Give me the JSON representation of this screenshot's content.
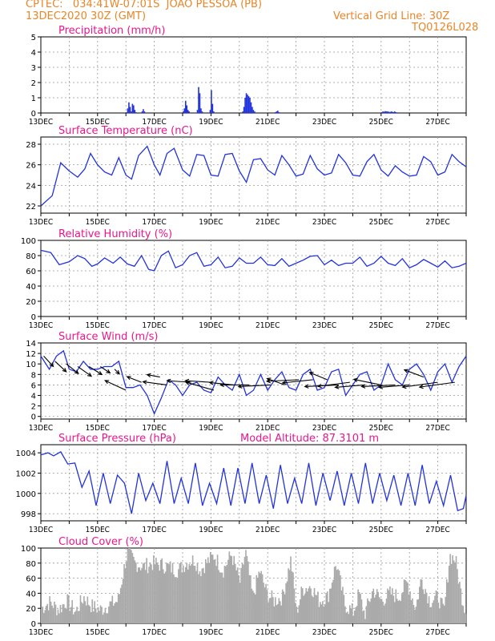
{
  "header": {
    "line1": "CPTEC:   034:41W-07:01S  JOAO PESSOA (PB)",
    "line2": "13DEC2020 30Z (GMT)",
    "grid_line": "Vertical Grid Line: 30Z",
    "code": "TQ0126L028"
  },
  "colors": {
    "series": "#2233dd",
    "title": "#e8178c",
    "header": "#e8862a",
    "cloud": "#aaaaaa",
    "arrow": "#000000"
  },
  "chart_data": [
    {
      "id": "precip",
      "type": "bar",
      "title": "Precipitation (mm/h)",
      "ylim": [
        0,
        5
      ],
      "yticks": [
        0,
        1,
        2,
        3,
        4,
        5
      ],
      "xticks": [
        "13DEC",
        "15DEC",
        "17DEC",
        "19DEC",
        "21DEC",
        "23DEC",
        "25DEC",
        "27DEC"
      ],
      "x_days": [
        0,
        15
      ],
      "step_hours": 1,
      "events": [
        {
          "start_day": 3.0,
          "values": [
            0.05,
            0.3,
            0.7,
            0.4,
            0.1,
            0.6,
            0.5,
            0.2,
            0.05
          ]
        },
        {
          "start_day": 3.55,
          "values": [
            0.1,
            0.25,
            0.1
          ]
        },
        {
          "start_day": 5.0,
          "values": [
            0.1,
            0.3,
            0.8,
            0.5,
            0.2,
            0.1
          ]
        },
        {
          "start_day": 5.5,
          "values": [
            0.2,
            1.7,
            1.3,
            0.3,
            0.1
          ]
        },
        {
          "start_day": 5.95,
          "values": [
            0.2,
            1.5,
            0.6,
            0.1
          ]
        },
        {
          "start_day": 7.1,
          "values": [
            0.1,
            0.4,
            1.0,
            1.3,
            1.2,
            1.1,
            1.0,
            0.7,
            0.4,
            0.2,
            0.1
          ]
        },
        {
          "start_day": 8.25,
          "values": [
            0.05,
            0.1,
            0.15,
            0.05
          ]
        },
        {
          "start_day": 12.0,
          "values": [
            0.05,
            0.1,
            0.08,
            0.12,
            0.1,
            0.1,
            0.08,
            0.06,
            0.1,
            0.08,
            0.06,
            0.1,
            0.05,
            0.04
          ]
        }
      ]
    },
    {
      "id": "temp",
      "type": "line",
      "title": "Surface Temperature (nC)",
      "ylim": [
        21.3,
        28.7
      ],
      "yticks": [
        22,
        24,
        26,
        28
      ],
      "xticks": [
        "13DEC",
        "15DEC",
        "17DEC",
        "19DEC",
        "21DEC",
        "23DEC",
        "25DEC",
        "27DEC"
      ],
      "x_days": [
        0,
        15
      ],
      "x": [
        0,
        0.4,
        0.7,
        1.0,
        1.3,
        1.55,
        1.75,
        2.0,
        2.25,
        2.5,
        2.75,
        3.0,
        3.2,
        3.45,
        3.75,
        4.0,
        4.2,
        4.45,
        4.7,
        5.0,
        5.25,
        5.5,
        5.75,
        6.0,
        6.25,
        6.5,
        6.75,
        7.0,
        7.25,
        7.5,
        7.75,
        8.0,
        8.25,
        8.5,
        8.75,
        9.0,
        9.25,
        9.5,
        9.75,
        10.0,
        10.25,
        10.5,
        10.75,
        11.0,
        11.25,
        11.5,
        11.75,
        12.0,
        12.25,
        12.5,
        12.75,
        13.0,
        13.25,
        13.5,
        13.75,
        14.0,
        14.25,
        14.5,
        14.75,
        15.0
      ],
      "values": [
        22.0,
        23.0,
        26.2,
        25.4,
        24.8,
        25.6,
        27.1,
        26.0,
        25.3,
        25.0,
        26.7,
        25.0,
        24.6,
        26.9,
        27.8,
        26.0,
        25.0,
        27.1,
        27.6,
        25.5,
        24.9,
        27.0,
        26.9,
        25.0,
        24.9,
        27.0,
        27.1,
        25.4,
        24.3,
        26.5,
        26.6,
        25.5,
        25.0,
        26.9,
        26.0,
        24.9,
        25.1,
        26.9,
        25.6,
        25.0,
        25.2,
        27.0,
        26.2,
        25.0,
        24.9,
        26.3,
        27.0,
        25.5,
        24.9,
        25.9,
        25.3,
        24.9,
        25.0,
        26.8,
        26.3,
        25.0,
        25.3,
        27.0,
        26.3,
        25.8
      ]
    },
    {
      "id": "rh",
      "type": "line",
      "title": "Relative Humidity (%)",
      "ylim": [
        0,
        100
      ],
      "yticks": [
        0,
        20,
        40,
        60,
        80,
        100
      ],
      "xticks": [
        "13DEC",
        "15DEC",
        "17DEC",
        "19DEC",
        "21DEC",
        "23DEC",
        "25DEC",
        "27DEC"
      ],
      "x_days": [
        0,
        15
      ],
      "x": [
        0,
        0.35,
        0.65,
        1.0,
        1.3,
        1.55,
        1.8,
        2.0,
        2.25,
        2.55,
        2.8,
        3.05,
        3.3,
        3.55,
        3.8,
        4.0,
        4.25,
        4.5,
        4.75,
        5.0,
        5.25,
        5.5,
        5.75,
        6.0,
        6.25,
        6.5,
        6.75,
        7.0,
        7.25,
        7.5,
        7.75,
        8.0,
        8.25,
        8.5,
        8.75,
        9.0,
        9.25,
        9.5,
        9.75,
        10.0,
        10.25,
        10.5,
        10.75,
        11.0,
        11.25,
        11.5,
        11.75,
        12.0,
        12.25,
        12.5,
        12.75,
        13.0,
        13.25,
        13.5,
        13.75,
        14.0,
        14.25,
        14.5,
        14.75,
        15.0
      ],
      "values": [
        87,
        84,
        68,
        72,
        80,
        76,
        66,
        69,
        77,
        70,
        78,
        69,
        66,
        80,
        62,
        60,
        80,
        86,
        64,
        68,
        80,
        84,
        66,
        68,
        78,
        64,
        66,
        77,
        70,
        70,
        78,
        68,
        67,
        76,
        66,
        70,
        74,
        79,
        80,
        68,
        74,
        67,
        70,
        70,
        78,
        66,
        70,
        79,
        70,
        67,
        76,
        64,
        68,
        75,
        70,
        65,
        73,
        64,
        66,
        70
      ]
    },
    {
      "id": "wind",
      "type": "line",
      "title": "Surface Wind (m/s)",
      "ylim": [
        -0.5,
        14
      ],
      "yticks": [
        0,
        2,
        4,
        6,
        8,
        10,
        12,
        14
      ],
      "xticks": [
        "13DEC",
        "15DEC",
        "17DEC",
        "19DEC",
        "21DEC",
        "23DEC",
        "25DEC",
        "27DEC"
      ],
      "x_days": [
        0,
        15
      ],
      "x": [
        0,
        0.3,
        0.55,
        0.8,
        1.0,
        1.25,
        1.5,
        1.75,
        2.0,
        2.25,
        2.5,
        2.75,
        3.0,
        3.25,
        3.5,
        3.75,
        4.0,
        4.25,
        4.5,
        4.75,
        5.0,
        5.25,
        5.5,
        5.75,
        6.0,
        6.25,
        6.5,
        6.75,
        7.0,
        7.25,
        7.5,
        7.75,
        8.0,
        8.25,
        8.5,
        8.75,
        9.0,
        9.25,
        9.5,
        9.75,
        10.0,
        10.25,
        10.5,
        10.75,
        11.0,
        11.25,
        11.5,
        11.75,
        12.0,
        12.25,
        12.5,
        12.75,
        13.0,
        13.25,
        13.5,
        13.75,
        14.0,
        14.25,
        14.5,
        14.75,
        15.0
      ],
      "values": [
        11.5,
        9.0,
        11.5,
        12.5,
        9.0,
        8.5,
        10.5,
        9.0,
        9.0,
        9.5,
        9.5,
        10.5,
        5.5,
        5.5,
        6.0,
        4.0,
        0.5,
        3.5,
        7.0,
        6.0,
        4.0,
        6.0,
        6.5,
        5.0,
        4.5,
        7.5,
        6.0,
        5.0,
        8.0,
        4.0,
        5.0,
        8.0,
        5.0,
        7.0,
        8.5,
        5.5,
        5.0,
        8.0,
        9.0,
        5.0,
        5.5,
        8.5,
        9.0,
        4.0,
        6.0,
        8.0,
        8.5,
        5.0,
        6.0,
        10.0,
        7.0,
        6.0,
        9.0,
        10.0,
        8.0,
        5.0,
        8.5,
        10.0,
        6.5,
        9.5,
        11.5
      ],
      "arrows": [
        {
          "x": 0.1,
          "speed": 11.5,
          "dx": 12,
          "dy": 13
        },
        {
          "x": 0.5,
          "speed": 10.5,
          "dx": 14,
          "dy": 13
        },
        {
          "x": 0.9,
          "speed": 10.0,
          "dx": 15,
          "dy": 12
        },
        {
          "x": 1.3,
          "speed": 9.5,
          "dx": 17,
          "dy": 12
        },
        {
          "x": 1.7,
          "speed": 9.5,
          "dx": 16,
          "dy": 10
        },
        {
          "x": 2.1,
          "speed": 9.5,
          "dx": 12,
          "dy": 8
        },
        {
          "x": 2.6,
          "speed": 9.0,
          "dx": 6,
          "dy": 6
        },
        {
          "x": 3.0,
          "speed": 5.0,
          "dx": -26,
          "dy": -12
        },
        {
          "x": 3.55,
          "speed": 6.5,
          "dx": -18,
          "dy": -7
        },
        {
          "x": 4.2,
          "speed": 7.5,
          "dx": -16,
          "dy": -3
        },
        {
          "x": 4.45,
          "speed": 6.0,
          "dx": -30,
          "dy": -4
        },
        {
          "x": 5.3,
          "speed": 6.5,
          "dx": -30,
          "dy": -2
        },
        {
          "x": 6.0,
          "speed": 6.5,
          "dx": -32,
          "dy": -2
        },
        {
          "x": 6.1,
          "speed": 5.0,
          "dx": -35,
          "dy": -10
        },
        {
          "x": 6.8,
          "speed": 6.0,
          "dx": -30,
          "dy": -3
        },
        {
          "x": 7.35,
          "speed": 6.0,
          "dx": -36,
          "dy": 0
        },
        {
          "x": 8.1,
          "speed": 6.0,
          "dx": -40,
          "dy": 2
        },
        {
          "x": 8.6,
          "speed": 6.0,
          "dx": -22,
          "dy": -8
        },
        {
          "x": 9.1,
          "speed": 7.0,
          "dx": -40,
          "dy": 2
        },
        {
          "x": 9.6,
          "speed": 7.0,
          "dx": -38,
          "dy": 4
        },
        {
          "x": 10.1,
          "speed": 7.0,
          "dx": -22,
          "dy": -9
        },
        {
          "x": 10.5,
          "speed": 6.0,
          "dx": -42,
          "dy": 2
        },
        {
          "x": 10.9,
          "speed": 6.5,
          "dx": -40,
          "dy": 5
        },
        {
          "x": 11.4,
          "speed": 6.0,
          "dx": -36,
          "dy": 3
        },
        {
          "x": 12.0,
          "speed": 6.0,
          "dx": -34,
          "dy": -7
        },
        {
          "x": 12.5,
          "speed": 6.0,
          "dx": -42,
          "dy": 2
        },
        {
          "x": 13.0,
          "speed": 6.0,
          "dx": -38,
          "dy": 3
        },
        {
          "x": 13.5,
          "speed": 7.5,
          "dx": -24,
          "dy": -9
        },
        {
          "x": 14.0,
          "speed": 6.5,
          "dx": -44,
          "dy": 6
        },
        {
          "x": 14.6,
          "speed": 6.5,
          "dx": -44,
          "dy": 6
        }
      ]
    },
    {
      "id": "press",
      "type": "line",
      "title": "Surface Pressure (hPa)",
      "extra_label": "Model Altitude: 87.3101 m",
      "ylim": [
        997.3,
        1004.8
      ],
      "yticks": [
        998,
        1000,
        1002,
        1004
      ],
      "xticks": [
        "13DEC",
        "15DEC",
        "17DEC",
        "19DEC",
        "21DEC",
        "23DEC",
        "25DEC",
        "27DEC"
      ],
      "x_days": [
        0,
        15
      ],
      "x": [
        0,
        0.25,
        0.45,
        0.7,
        0.95,
        1.2,
        1.45,
        1.7,
        1.95,
        2.2,
        2.45,
        2.7,
        2.95,
        3.2,
        3.45,
        3.7,
        3.95,
        4.2,
        4.45,
        4.7,
        4.95,
        5.2,
        5.45,
        5.7,
        5.95,
        6.2,
        6.45,
        6.7,
        6.95,
        7.2,
        7.45,
        7.7,
        7.95,
        8.2,
        8.45,
        8.7,
        8.95,
        9.2,
        9.45,
        9.7,
        9.95,
        10.2,
        10.45,
        10.7,
        10.95,
        11.2,
        11.45,
        11.7,
        11.95,
        12.2,
        12.45,
        12.7,
        12.95,
        13.2,
        13.45,
        13.7,
        13.95,
        14.2,
        14.45,
        14.7,
        14.9,
        15.0
      ],
      "values": [
        1003.8,
        1004.0,
        1003.7,
        1004.1,
        1002.9,
        1003.0,
        1000.6,
        1002.2,
        998.8,
        1002.0,
        999.0,
        1001.8,
        1001.0,
        998.0,
        1002.0,
        999.3,
        1001.0,
        999.0,
        1003.2,
        999.0,
        1001.5,
        999.0,
        1003.0,
        998.8,
        1001.0,
        999.0,
        1002.5,
        998.8,
        1002.5,
        999.0,
        1003.0,
        999.0,
        1001.8,
        998.5,
        1002.8,
        999.0,
        1001.5,
        999.0,
        1003.0,
        998.8,
        1002.0,
        999.3,
        1002.2,
        998.8,
        1002.0,
        999.0,
        1003.0,
        999.0,
        1002.0,
        999.3,
        1001.8,
        998.8,
        1002.0,
        998.8,
        1002.8,
        999.0,
        1001.2,
        998.8,
        1001.8,
        998.3,
        998.5,
        999.8
      ]
    },
    {
      "id": "cloud",
      "type": "area",
      "title": "Cloud Cover (%)",
      "ylim": [
        0,
        100
      ],
      "yticks": [
        0,
        20,
        40,
        60,
        80,
        100
      ],
      "xticks": [
        "13DEC",
        "15DEC",
        "17DEC",
        "19DEC",
        "21DEC",
        "23DEC",
        "25DEC",
        "27DEC"
      ],
      "x_days": [
        0,
        15
      ],
      "x": [
        0,
        0.3,
        0.6,
        0.9,
        1.2,
        1.5,
        1.8,
        2.1,
        2.4,
        2.7,
        2.95,
        3.05,
        3.3,
        3.6,
        3.9,
        4.2,
        4.5,
        4.8,
        5.1,
        5.4,
        5.6,
        5.8,
        6.1,
        6.4,
        6.7,
        7.0,
        7.2,
        7.45,
        7.7,
        7.95,
        8.2,
        8.5,
        8.8,
        9.0,
        9.2,
        9.5,
        9.8,
        10.1,
        10.4,
        10.7,
        11.0,
        11.2,
        11.4,
        11.7,
        12.0,
        12.3,
        12.6,
        12.9,
        13.2,
        13.4,
        13.7,
        14.0,
        14.2,
        14.4,
        14.6,
        14.8,
        15.0
      ],
      "values": [
        20,
        28,
        18,
        30,
        15,
        35,
        22,
        18,
        25,
        30,
        80,
        95,
        80,
        75,
        80,
        78,
        75,
        70,
        80,
        85,
        70,
        80,
        90,
        70,
        92,
        55,
        95,
        35,
        70,
        40,
        30,
        35,
        85,
        15,
        45,
        50,
        30,
        35,
        80,
        25,
        15,
        40,
        12,
        45,
        30,
        40,
        35,
        55,
        20,
        60,
        30,
        35,
        15,
        90,
        85,
        40,
        10
      ]
    }
  ]
}
